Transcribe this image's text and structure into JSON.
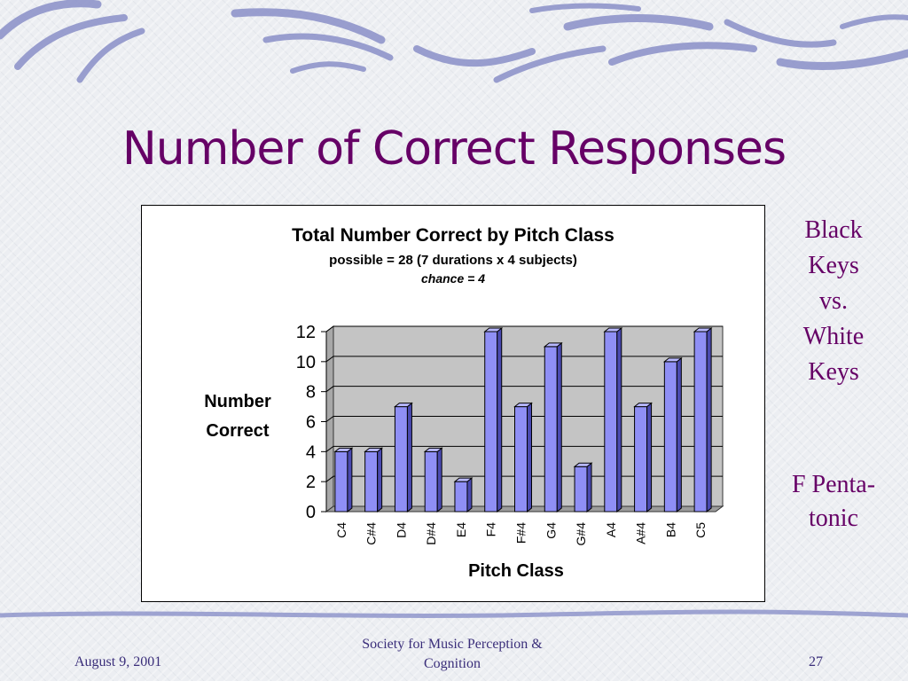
{
  "slide": {
    "title": "Number of Correct Responses",
    "side_notes": {
      "black_white": "Black\nKeys\nvs.\nWhite\nKeys",
      "pentatonic": "F Penta-\ntonic"
    },
    "footer": {
      "date": "August 9, 2001",
      "organization": "Society for Music Perception &\nCognition",
      "page": "27"
    },
    "colors": {
      "title": "#660066",
      "bar_face": "#8f8ff5",
      "bar_top": "#b8b8ff",
      "bar_side": "#4a4ab0",
      "plot_wall": "#c4c4c4",
      "decoration": "#8a90c8"
    }
  },
  "chart_data": {
    "type": "bar",
    "title": "Total Number Correct by Pitch Class",
    "subtitle": "possible = 28 (7 durations x 4 subjects)",
    "note": "chance = 4",
    "xlabel": "Pitch Class",
    "ylabel": "Number Correct",
    "categories": [
      "C4",
      "C#4",
      "D4",
      "D#4",
      "E4",
      "F4",
      "F#4",
      "G4",
      "G#4",
      "A4",
      "A#4",
      "B4",
      "C5"
    ],
    "values": [
      4,
      4,
      7,
      4,
      2,
      12,
      7,
      11,
      3,
      12,
      7,
      10,
      12
    ],
    "ylim": [
      0,
      12
    ],
    "yticks": [
      "0",
      "2",
      "4",
      "6",
      "8",
      "10",
      "12"
    ],
    "grid": true,
    "legend": "none"
  }
}
